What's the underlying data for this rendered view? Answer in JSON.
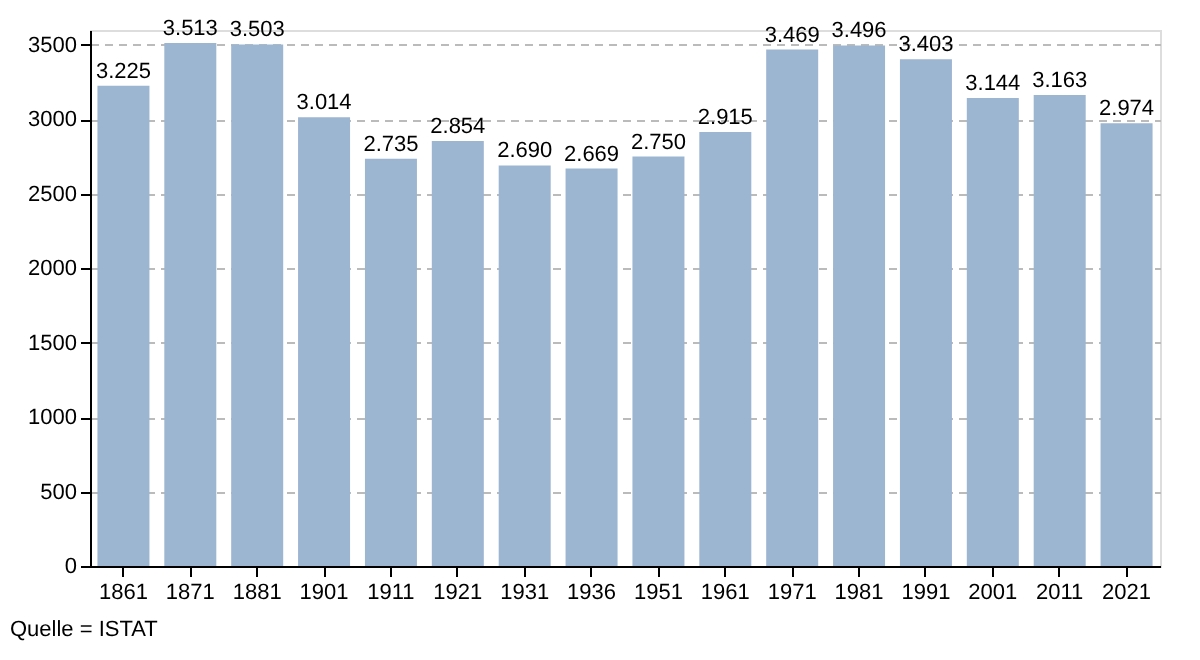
{
  "chart_data": {
    "type": "bar",
    "categories": [
      "1861",
      "1871",
      "1881",
      "1901",
      "1911",
      "1921",
      "1931",
      "1936",
      "1951",
      "1961",
      "1971",
      "1981",
      "1991",
      "2001",
      "2011",
      "2021"
    ],
    "values": [
      3225,
      3513,
      3503,
      3014,
      2735,
      2854,
      2690,
      2669,
      2750,
      2915,
      3469,
      3496,
      3403,
      3144,
      3163,
      2974
    ],
    "value_labels": [
      "3.225",
      "3.513",
      "3.503",
      "3.014",
      "2.735",
      "2.854",
      "2.690",
      "2.669",
      "2.750",
      "2.915",
      "3.469",
      "3.496",
      "3.403",
      "3.144",
      "3.163",
      "2.974"
    ],
    "color": "#9cb5d0",
    "ylim": [
      0,
      3600
    ],
    "yticks": [
      0,
      500,
      1000,
      1500,
      2000,
      2500,
      3000,
      3500
    ],
    "grid": "y",
    "annotations": [
      "Quelle = ISTAT"
    ]
  }
}
